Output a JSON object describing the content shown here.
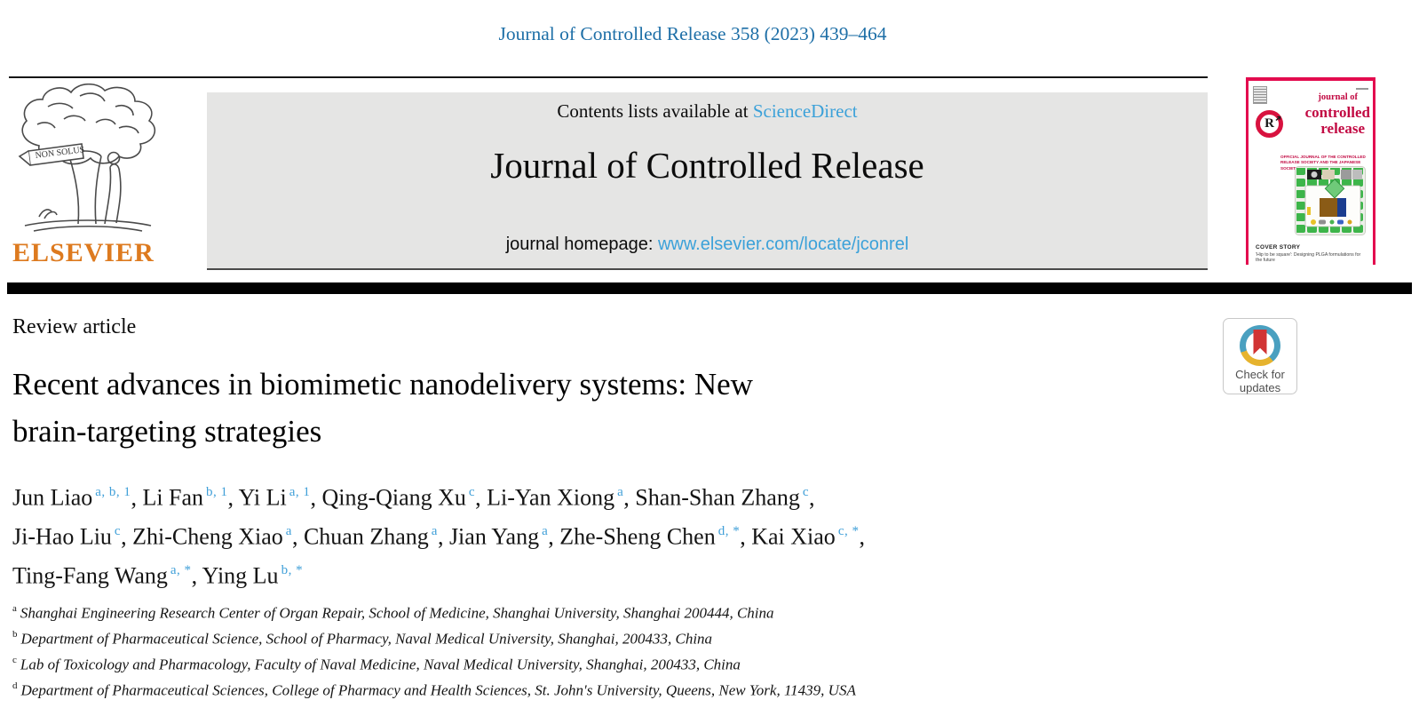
{
  "page": {
    "citation": "Journal of Controlled Release 358 (2023) 439–464"
  },
  "header": {
    "contents_prefix": "Contents lists available at ",
    "contents_link": "ScienceDirect",
    "journal_title": "Journal of Controlled Release",
    "homepage_prefix": "journal homepage: ",
    "homepage_link": "www.elsevier.com/locate/jconrel",
    "elsevier_wordmark": "ELSEVIER",
    "elsevier_motto": "NON SOLUS"
  },
  "cover": {
    "title_line1": "journal of",
    "title_line2": "controlled",
    "title_line3": "release",
    "logo_letter": "R",
    "society_line": "OFFICIAL JOURNAL OF THE CONTROLLED RELEASE SOCIETY AND THE JAPANESE SOCIETY OF DRUG DELIVERY SYSTEM",
    "cover_story_label": "COVER STORY",
    "cover_story_text": "'Hip to be square': Designing PLGA formulations for the future"
  },
  "article": {
    "type_label": "Review article",
    "title_line1": "Recent advances in biomimetic nanodelivery systems: New",
    "title_line2": "brain-targeting strategies",
    "author_lines": [
      [
        {
          "name": "Jun Liao",
          "sup": "a, b, 1",
          "sep": ", "
        },
        {
          "name": "Li Fan",
          "sup": "b, 1",
          "sep": ", "
        },
        {
          "name": "Yi Li",
          "sup": "a, 1",
          "sep": ", "
        },
        {
          "name": "Qing-Qiang Xu",
          "sup": "c",
          "sep": ", "
        },
        {
          "name": "Li-Yan Xiong",
          "sup": "a",
          "sep": ", "
        },
        {
          "name": "Shan-Shan Zhang",
          "sup": "c",
          "sep": ","
        }
      ],
      [
        {
          "name": "Ji-Hao Liu",
          "sup": "c",
          "sep": ", "
        },
        {
          "name": "Zhi-Cheng Xiao",
          "sup": "a",
          "sep": ", "
        },
        {
          "name": "Chuan Zhang",
          "sup": "a",
          "sep": ", "
        },
        {
          "name": "Jian Yang",
          "sup": "a",
          "sep": ", "
        },
        {
          "name": "Zhe-Sheng Chen",
          "sup": "d, *",
          "sep": ", "
        },
        {
          "name": "Kai Xiao",
          "sup": "c, *",
          "sep": ","
        }
      ],
      [
        {
          "name": "Ting-Fang Wang",
          "sup": "a, *",
          "sep": ", "
        },
        {
          "name": "Ying Lu",
          "sup": "b, *",
          "sep": ""
        }
      ]
    ],
    "affiliations": [
      {
        "label": "a",
        "text": "Shanghai Engineering Research Center of Organ Repair, School of Medicine, Shanghai University, Shanghai 200444, China"
      },
      {
        "label": "b",
        "text": "Department of Pharmaceutical Science, School of Pharmacy, Naval Medical University, Shanghai, 200433, China"
      },
      {
        "label": "c",
        "text": "Lab of Toxicology and Pharmacology, Faculty of Naval Medicine, Naval Medical University, Shanghai, 200433, China"
      },
      {
        "label": "d",
        "text": "Department of Pharmaceutical Sciences, College of Pharmacy and Health Sciences, St. John's University, Queens, New York, 11439, USA"
      }
    ]
  },
  "badge": {
    "check_line1": "Check for",
    "check_line2": "updates"
  },
  "colors": {
    "citation_blue": "#1e6fa7",
    "link_blue": "#3ba1d9",
    "superscript_blue": "#3f9fd8",
    "elsevier_orange": "#dd7a1f",
    "banner_gray": "#e5e5e4",
    "cover_crimson": "#d8123f",
    "badge_teal": "#4aa0c0",
    "badge_yellow": "#e6b32e",
    "badge_red": "#d13434",
    "divider_black": "#000000"
  }
}
